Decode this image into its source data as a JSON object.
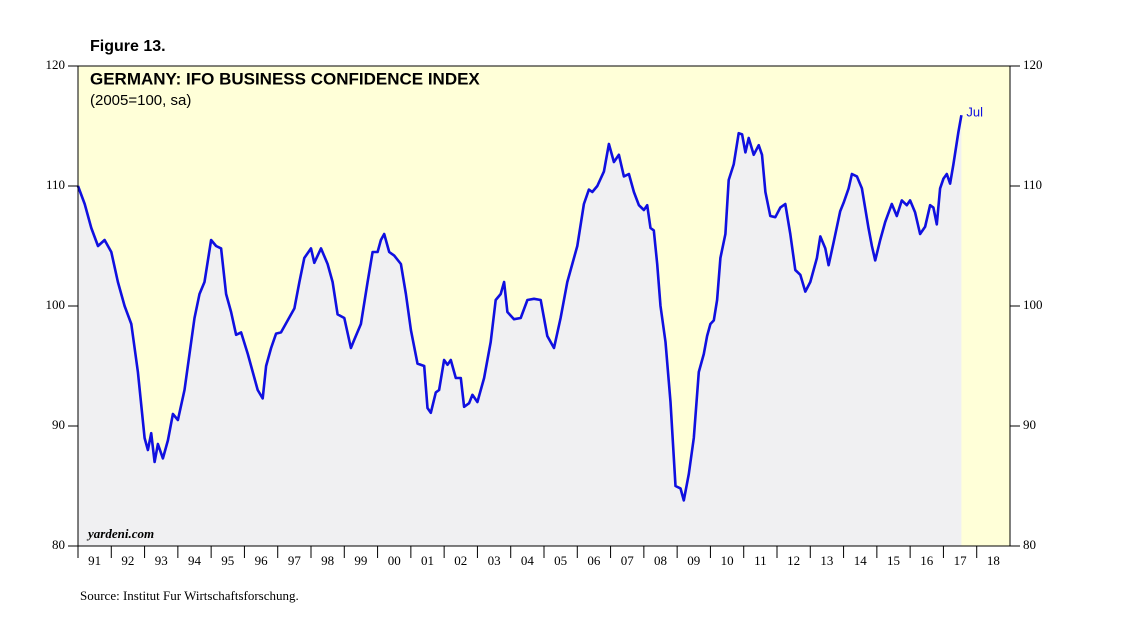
{
  "chart_data": {
    "type": "line",
    "figure_label": "Figure 13.",
    "title": "GERMANY: IFO BUSINESS CONFIDENCE INDEX",
    "subtitle": "(2005=100, sa)",
    "watermark": "yardeni.com",
    "source": "Source:  Institut Fur Wirtschaftsforschung.",
    "end_label": "Jul",
    "color": "#1010e0",
    "x": [
      1991.0,
      1991.2,
      1991.4,
      1991.6,
      1991.8,
      1992.0,
      1992.2,
      1992.4,
      1992.6,
      1992.8,
      1993.0,
      1993.1,
      1993.2,
      1993.3,
      1993.4,
      1993.55,
      1993.7,
      1993.85,
      1994.0,
      1994.2,
      1994.35,
      1994.5,
      1994.65,
      1994.8,
      1995.0,
      1995.15,
      1995.3,
      1995.45,
      1995.6,
      1995.75,
      1995.9,
      1996.1,
      1996.3,
      1996.4,
      1996.55,
      1996.65,
      1996.8,
      1996.95,
      1997.1,
      1997.3,
      1997.5,
      1997.65,
      1997.8,
      1998.0,
      1998.1,
      1998.3,
      1998.5,
      1998.65,
      1998.8,
      1999.0,
      1999.2,
      1999.3,
      1999.5,
      1999.7,
      1999.85,
      2000.0,
      2000.1,
      2000.2,
      2000.35,
      2000.5,
      2000.7,
      2000.85,
      2001.0,
      2001.2,
      2001.4,
      2001.5,
      2001.6,
      2001.75,
      2001.85,
      2002.0,
      2002.1,
      2002.2,
      2002.35,
      2002.5,
      2002.6,
      2002.75,
      2002.85,
      2003.0,
      2003.2,
      2003.4,
      2003.55,
      2003.7,
      2003.8,
      2003.9,
      2004.1,
      2004.3,
      2004.5,
      2004.7,
      2004.9,
      2005.0,
      2005.1,
      2005.3,
      2005.5,
      2005.7,
      2005.85,
      2006.0,
      2006.2,
      2006.35,
      2006.45,
      2006.6,
      2006.8,
      2006.95,
      2007.1,
      2007.25,
      2007.4,
      2007.55,
      2007.7,
      2007.85,
      2008.0,
      2008.1,
      2008.2,
      2008.3,
      2008.4,
      2008.5,
      2008.65,
      2008.8,
      2008.95,
      2009.1,
      2009.2,
      2009.35,
      2009.5,
      2009.65,
      2009.8,
      2009.9,
      2010.0,
      2010.1,
      2010.2,
      2010.3,
      2010.45,
      2010.55,
      2010.7,
      2010.85,
      2010.95,
      2011.05,
      2011.15,
      2011.3,
      2011.45,
      2011.55,
      2011.65,
      2011.8,
      2011.95,
      2012.1,
      2012.25,
      2012.4,
      2012.55,
      2012.7,
      2012.85,
      2013.0,
      2013.2,
      2013.3,
      2013.45,
      2013.55,
      2013.7,
      2013.9,
      2014.0,
      2014.15,
      2014.25,
      2014.4,
      2014.55,
      2014.75,
      2014.85,
      2014.95,
      2015.1,
      2015.25,
      2015.45,
      2015.6,
      2015.75,
      2015.9,
      2016.0,
      2016.15,
      2016.3,
      2016.45,
      2016.6,
      2016.7,
      2016.8,
      2016.9,
      2017.0,
      2017.1,
      2017.2,
      2017.3,
      2017.45,
      2017.54
    ],
    "values": [
      110,
      108.5,
      106.5,
      105,
      105.5,
      104.5,
      102,
      100,
      98.5,
      94.5,
      89,
      88,
      89.4,
      87,
      88.5,
      87.3,
      88.8,
      91,
      90.5,
      93,
      96,
      99,
      101,
      102,
      105.5,
      105,
      104.8,
      101,
      99.5,
      97.6,
      97.8,
      96,
      94,
      93,
      92.3,
      95,
      96.5,
      97.7,
      97.8,
      98.8,
      99.8,
      102,
      104,
      104.8,
      103.6,
      104.8,
      103.5,
      102,
      99.3,
      99,
      96.5,
      97.2,
      98.5,
      102,
      104.5,
      104.5,
      105.5,
      106,
      104.5,
      104.2,
      103.5,
      101,
      98,
      95.2,
      95,
      91.5,
      91.1,
      92.8,
      93,
      95.5,
      95.1,
      95.5,
      94,
      94,
      91.6,
      91.9,
      92.6,
      92,
      94,
      97,
      100.5,
      101,
      102,
      99.5,
      98.9,
      99,
      100.5,
      100.6,
      100.5,
      99,
      97.5,
      96.5,
      99,
      102,
      103.5,
      105,
      108.5,
      109.7,
      109.5,
      110,
      111.2,
      113.5,
      112,
      112.6,
      110.8,
      111,
      109.5,
      108.4,
      108,
      108.4,
      106.5,
      106.3,
      103.5,
      100,
      97,
      92,
      85,
      84.8,
      83.8,
      86,
      89,
      94.5,
      96,
      97.5,
      98.5,
      98.8,
      100.5,
      104,
      106,
      110.5,
      111.8,
      114.4,
      114.3,
      112.8,
      114,
      112.6,
      113.4,
      112.6,
      109.5,
      107.5,
      107.4,
      108.2,
      108.5,
      106,
      103,
      102.6,
      101.2,
      102,
      104,
      105.8,
      104.8,
      103.4,
      105.3,
      107.9,
      108.6,
      109.8,
      111,
      110.8,
      109.8,
      106.5,
      105,
      103.8,
      105.5,
      107,
      108.5,
      107.5,
      108.8,
      108.4,
      108.8,
      107.8,
      106,
      106.6,
      108.4,
      108.2,
      106.8,
      109.8,
      110.6,
      111,
      110.2,
      111.8,
      114.5,
      115.9
    ],
    "xlim": [
      1991,
      2019
    ],
    "xticks": [
      {
        "value": 1991,
        "label": "91"
      },
      {
        "value": 1992,
        "label": "92"
      },
      {
        "value": 1993,
        "label": "93"
      },
      {
        "value": 1994,
        "label": "94"
      },
      {
        "value": 1995,
        "label": "95"
      },
      {
        "value": 1996,
        "label": "96"
      },
      {
        "value": 1997,
        "label": "97"
      },
      {
        "value": 1998,
        "label": "98"
      },
      {
        "value": 1999,
        "label": "99"
      },
      {
        "value": 2000,
        "label": "00"
      },
      {
        "value": 2001,
        "label": "01"
      },
      {
        "value": 2002,
        "label": "02"
      },
      {
        "value": 2003,
        "label": "03"
      },
      {
        "value": 2004,
        "label": "04"
      },
      {
        "value": 2005,
        "label": "05"
      },
      {
        "value": 2006,
        "label": "06"
      },
      {
        "value": 2007,
        "label": "07"
      },
      {
        "value": 2008,
        "label": "08"
      },
      {
        "value": 2009,
        "label": "09"
      },
      {
        "value": 2010,
        "label": "10"
      },
      {
        "value": 2011,
        "label": "11"
      },
      {
        "value": 2012,
        "label": "12"
      },
      {
        "value": 2013,
        "label": "13"
      },
      {
        "value": 2014,
        "label": "14"
      },
      {
        "value": 2015,
        "label": "15"
      },
      {
        "value": 2016,
        "label": "16"
      },
      {
        "value": 2017,
        "label": "17"
      },
      {
        "value": 2018,
        "label": "18"
      }
    ],
    "ylim": [
      80,
      120
    ],
    "yticks": [
      80,
      90,
      100,
      110,
      120
    ],
    "y2lim": [
      80,
      120
    ],
    "y2ticks": [
      80,
      90,
      100,
      110,
      120
    ]
  }
}
